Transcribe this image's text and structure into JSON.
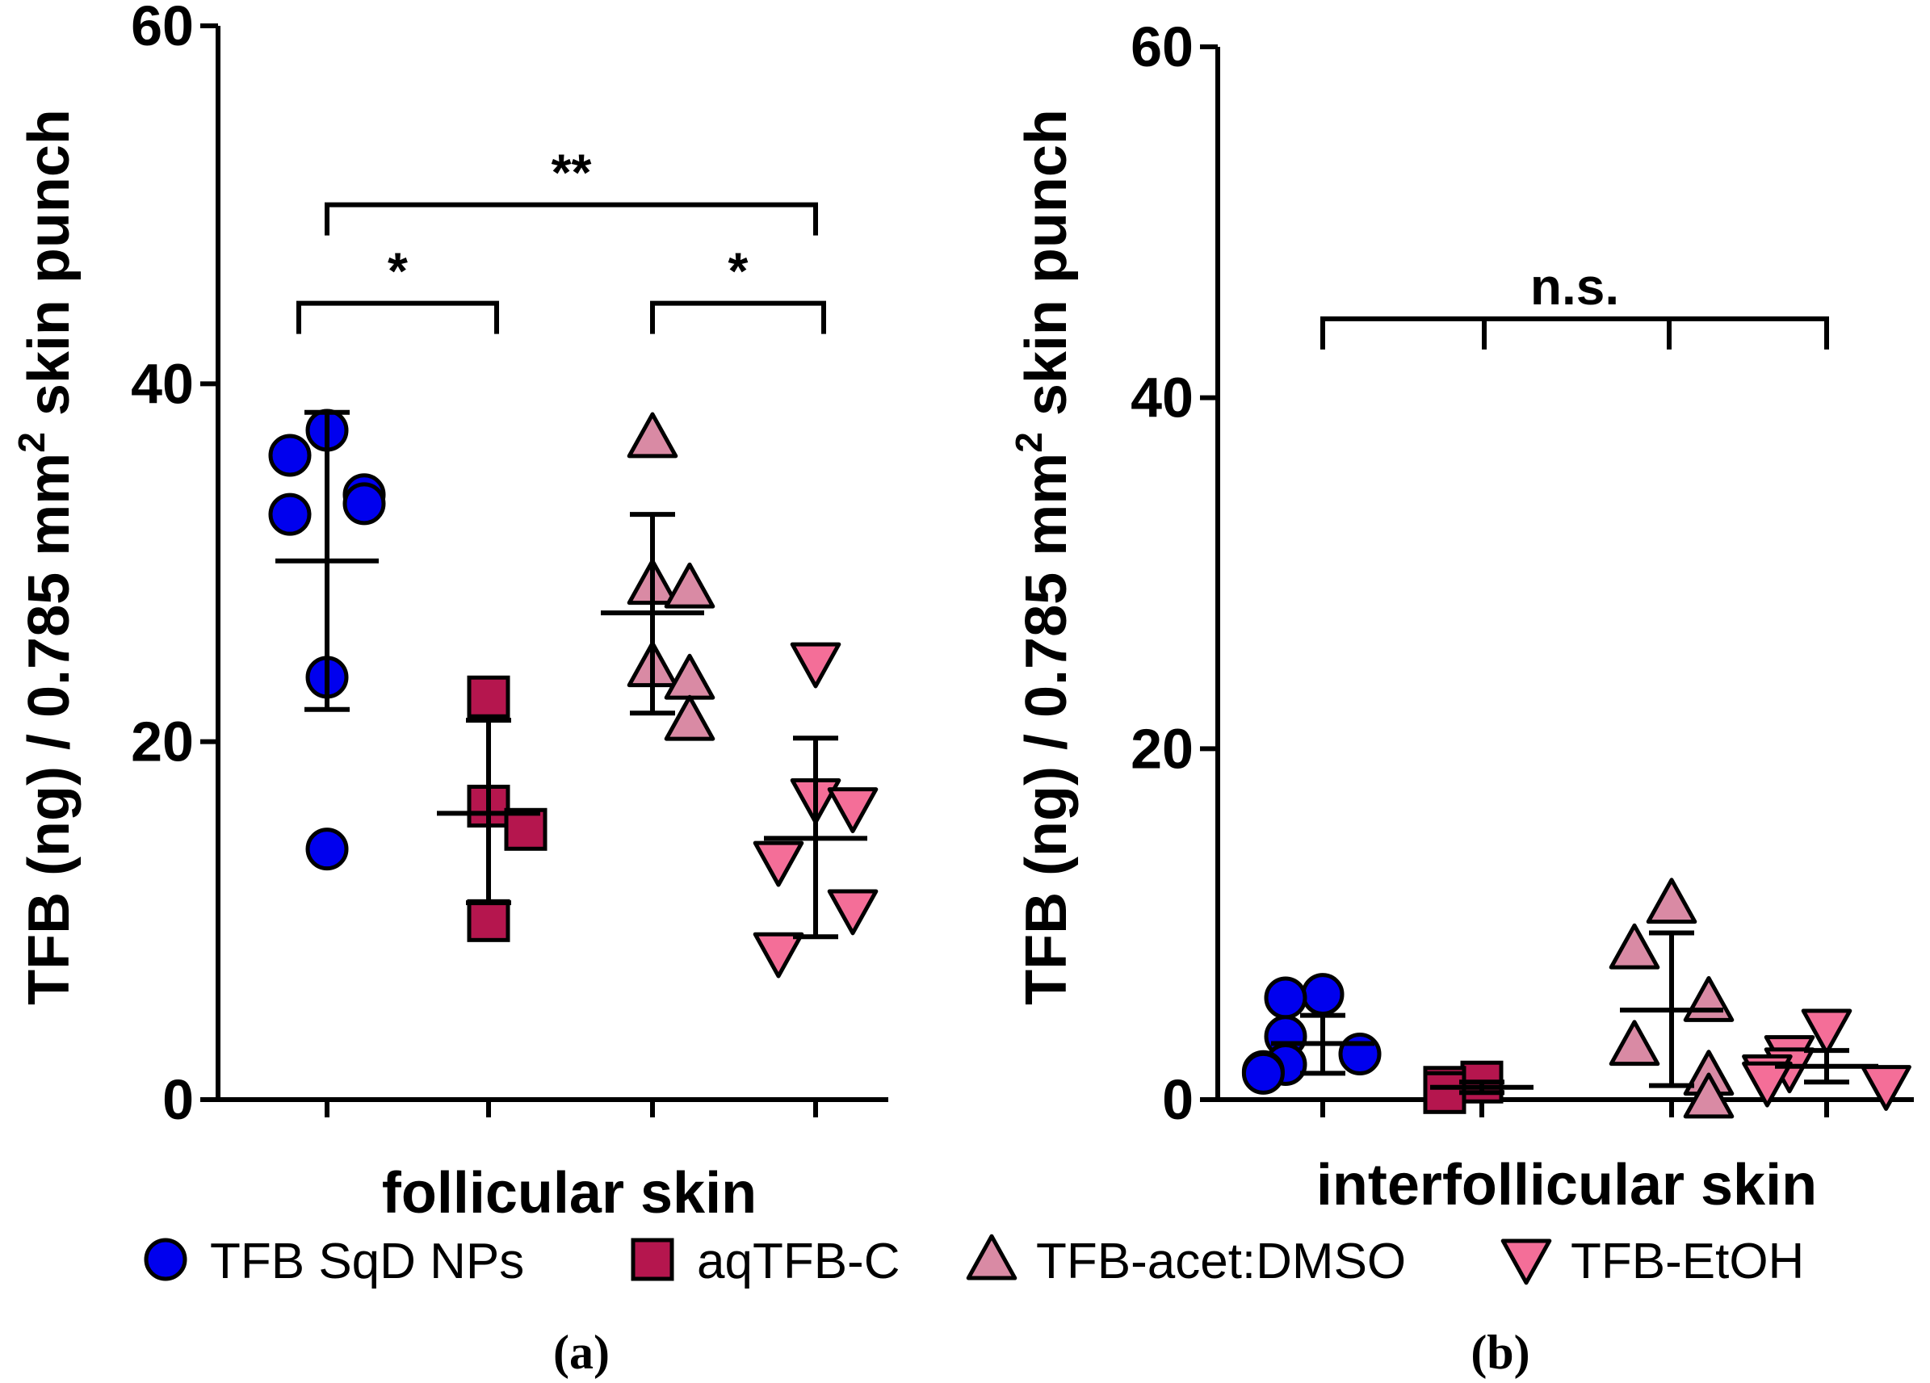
{
  "legend": [
    {
      "name": "TFB SqD NPs",
      "marker": "circle",
      "color": "#0000ee"
    },
    {
      "name": "aqTFB-C",
      "marker": "square",
      "color": "#b5164e"
    },
    {
      "name": "TFB-acet:DMSO",
      "marker": "triangle-up",
      "color": "#d98aa4"
    },
    {
      "name": "TFB-EtOH",
      "marker": "triangle-down",
      "color": "#f46e98"
    }
  ],
  "chart_data": [
    {
      "type": "scatter",
      "panel": "(a)",
      "xlabel": "follicular skin",
      "ylabel_main": "TFB (ng) / 0.785 mm",
      "ylabel_sup": "2",
      "ylabel_tail": " skin punch",
      "ylim": [
        0,
        60
      ],
      "yticks": [
        "0",
        "20",
        "40",
        "60"
      ],
      "groups": [
        {
          "name": "TFB SqD NPs",
          "values": [
            37.4,
            36.0,
            33.8,
            33.3,
            32.7,
            23.6,
            14.0
          ],
          "mean": 30.1,
          "sd_low": 21.8,
          "sd_high": 38.4
        },
        {
          "name": "aqTFB-C",
          "values": [
            22.5,
            16.4,
            15.1,
            10.0
          ],
          "mean": 16.0,
          "sd_low": 11.0,
          "sd_high": 21.2
        },
        {
          "name": "TFB-acet:DMSO",
          "values": [
            37.0,
            28.8,
            28.6,
            24.2,
            23.5,
            21.2
          ],
          "mean": 27.2,
          "sd_low": 21.6,
          "sd_high": 32.7
        },
        {
          "name": "TFB-EtOH",
          "values": [
            24.4,
            16.8,
            16.3,
            13.3,
            10.6,
            8.2
          ],
          "mean": 14.6,
          "sd_low": 9.1,
          "sd_high": 20.2
        }
      ],
      "significance": [
        {
          "from": 1,
          "to": 2,
          "label": "*",
          "level": 44.5
        },
        {
          "from": 3,
          "to": 4,
          "label": "*",
          "level": 44.5
        },
        {
          "from": 1,
          "to": 4,
          "label": "**",
          "level": 50.0
        }
      ]
    },
    {
      "type": "scatter",
      "panel": "(b)",
      "xlabel": "interfollicular skin",
      "ylabel_main": "TFB (ng) / 0.785 mm",
      "ylabel_sup": "2",
      "ylabel_tail": " skin punch",
      "ylim": [
        0,
        60
      ],
      "yticks": [
        "0",
        "20",
        "40",
        "60"
      ],
      "groups": [
        {
          "name": "TFB SqD NPs",
          "values": [
            6.0,
            5.8,
            3.6,
            2.6,
            2.0,
            1.6,
            1.5
          ],
          "mean": 3.2,
          "sd_low": 1.5,
          "sd_high": 4.8
        },
        {
          "name": "aqTFB-C",
          "values": [
            1.0,
            0.7,
            0.4
          ],
          "mean": 0.7,
          "sd_low": 0.4,
          "sd_high": 1.0
        },
        {
          "name": "TFB-acet:DMSO",
          "values": [
            11.2,
            8.6,
            5.6,
            3.1,
            1.4,
            0.1
          ],
          "mean": 5.1,
          "sd_low": 0.8,
          "sd_high": 9.5
        },
        {
          "name": "TFB-EtOH",
          "values": [
            4.0,
            2.5,
            1.8,
            1.4,
            1.0,
            0.8
          ],
          "mean": 1.9,
          "sd_low": 1.0,
          "sd_high": 2.8
        }
      ],
      "significance": [
        {
          "from": 1,
          "to": 4,
          "label": "n.s.",
          "level": 44.5,
          "inner_ticks": [
            2,
            3
          ]
        }
      ]
    }
  ]
}
